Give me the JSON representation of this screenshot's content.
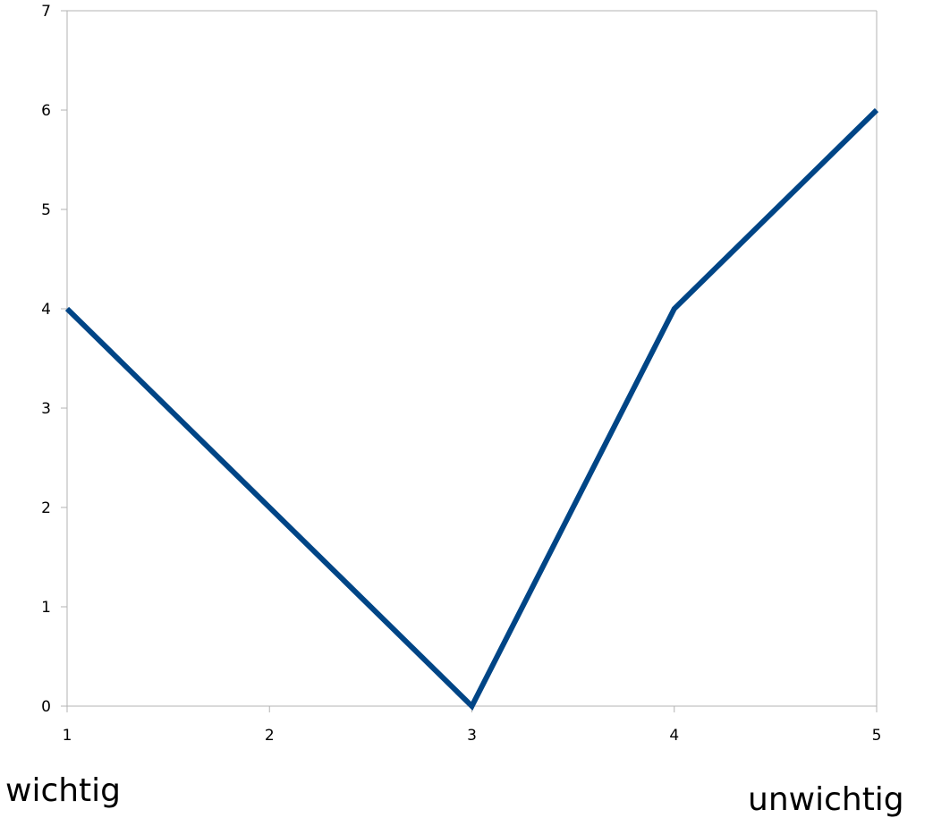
{
  "chart_data": {
    "type": "line",
    "title": "",
    "xlabel": "",
    "ylabel": "",
    "x": [
      1,
      2,
      3,
      4,
      5
    ],
    "series": [
      {
        "values": [
          4,
          2,
          0,
          4,
          6
        ],
        "color": "#004586"
      }
    ],
    "xlim": [
      1,
      5
    ],
    "ylim": [
      0,
      7
    ],
    "x_ticks": [
      "1",
      "2",
      "3",
      "4",
      "5"
    ],
    "y_ticks": [
      "0",
      "1",
      "2",
      "3",
      "4",
      "5",
      "6",
      "7"
    ],
    "grid": false,
    "legend": "none",
    "axis_color": "#b3b3b3"
  },
  "labels": {
    "left": "wichtig",
    "right": "unwichtig"
  }
}
